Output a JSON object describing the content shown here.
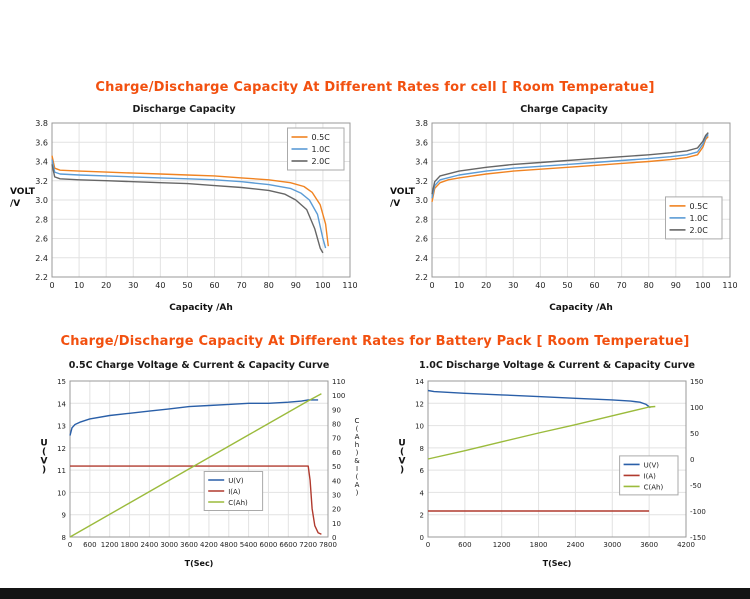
{
  "page": {
    "section1_title": "Charge/Discharge Capacity At Different Rates for cell [ Room Temperatue]",
    "section2_title": "Charge/Discharge Capacity At Different Rates for Battery Pack [ Room Temperatue]",
    "title_color": "#f2500f"
  },
  "chart_data": [
    {
      "type": "line",
      "title": "Discharge Capacity",
      "xlabel": "Capacity /Ah",
      "ylabel": "VOLT\n/V",
      "xlim": [
        0,
        110
      ],
      "ylim": [
        2.2,
        3.8
      ],
      "xticks": [
        "0",
        "10",
        "20",
        "30",
        "40",
        "50",
        "60",
        "70",
        "80",
        "90",
        "100",
        "110"
      ],
      "yticks": [
        "2.2",
        "2.4",
        "2.6",
        "2.8",
        "3.0",
        "3.2",
        "3.4",
        "3.6",
        "3.8"
      ],
      "grid": true,
      "legend_pos": "top-right",
      "series": [
        {
          "name": "0.5C",
          "color": "#f08321",
          "axis": "left",
          "points": [
            [
              0,
              3.46
            ],
            [
              1,
              3.33
            ],
            [
              3,
              3.31
            ],
            [
              10,
              3.3
            ],
            [
              20,
              3.29
            ],
            [
              30,
              3.28
            ],
            [
              40,
              3.27
            ],
            [
              50,
              3.26
            ],
            [
              60,
              3.25
            ],
            [
              70,
              3.23
            ],
            [
              80,
              3.21
            ],
            [
              88,
              3.18
            ],
            [
              93,
              3.14
            ],
            [
              96,
              3.08
            ],
            [
              99,
              2.95
            ],
            [
              101,
              2.75
            ],
            [
              102,
              2.52
            ]
          ]
        },
        {
          "name": "1.0C",
          "color": "#5b9bd5",
          "axis": "left",
          "points": [
            [
              0,
              3.42
            ],
            [
              1,
              3.29
            ],
            [
              3,
              3.27
            ],
            [
              10,
              3.26
            ],
            [
              20,
              3.25
            ],
            [
              30,
              3.24
            ],
            [
              40,
              3.23
            ],
            [
              50,
              3.22
            ],
            [
              60,
              3.21
            ],
            [
              70,
              3.19
            ],
            [
              80,
              3.16
            ],
            [
              88,
              3.12
            ],
            [
              92,
              3.07
            ],
            [
              95,
              3.0
            ],
            [
              98,
              2.85
            ],
            [
              100,
              2.6
            ],
            [
              101,
              2.5
            ]
          ]
        },
        {
          "name": "2.0C",
          "color": "#666666",
          "axis": "left",
          "points": [
            [
              0,
              3.37
            ],
            [
              1,
              3.24
            ],
            [
              3,
              3.22
            ],
            [
              10,
              3.21
            ],
            [
              20,
              3.2
            ],
            [
              30,
              3.19
            ],
            [
              40,
              3.18
            ],
            [
              50,
              3.17
            ],
            [
              60,
              3.15
            ],
            [
              70,
              3.13
            ],
            [
              80,
              3.1
            ],
            [
              86,
              3.06
            ],
            [
              90,
              3.0
            ],
            [
              94,
              2.9
            ],
            [
              97,
              2.7
            ],
            [
              99,
              2.5
            ],
            [
              100,
              2.45
            ]
          ]
        }
      ]
    },
    {
      "type": "line",
      "title": "Charge Capacity",
      "xlabel": "Capacity /Ah",
      "ylabel": "VOLT\n/V",
      "xlim": [
        0,
        110
      ],
      "ylim": [
        2.2,
        3.8
      ],
      "xticks": [
        "0",
        "10",
        "20",
        "30",
        "40",
        "50",
        "60",
        "70",
        "80",
        "90",
        "100",
        "110"
      ],
      "yticks": [
        "2.2",
        "2.4",
        "2.6",
        "2.8",
        "3.0",
        "3.2",
        "3.4",
        "3.6",
        "3.8"
      ],
      "grid": true,
      "legend_pos": "mid-right",
      "series": [
        {
          "name": "0.5C",
          "color": "#f08321",
          "axis": "left",
          "points": [
            [
              0,
              2.98
            ],
            [
              1,
              3.12
            ],
            [
              3,
              3.18
            ],
            [
              6,
              3.21
            ],
            [
              10,
              3.23
            ],
            [
              15,
              3.25
            ],
            [
              20,
              3.27
            ],
            [
              30,
              3.3
            ],
            [
              40,
              3.32
            ],
            [
              50,
              3.34
            ],
            [
              60,
              3.36
            ],
            [
              70,
              3.38
            ],
            [
              80,
              3.4
            ],
            [
              88,
              3.42
            ],
            [
              94,
              3.44
            ],
            [
              98,
              3.47
            ],
            [
              100,
              3.55
            ],
            [
              101,
              3.63
            ],
            [
              102,
              3.66
            ]
          ]
        },
        {
          "name": "1.0C",
          "color": "#5b9bd5",
          "axis": "left",
          "points": [
            [
              0,
              3.02
            ],
            [
              1,
              3.15
            ],
            [
              3,
              3.21
            ],
            [
              10,
              3.26
            ],
            [
              20,
              3.3
            ],
            [
              30,
              3.33
            ],
            [
              40,
              3.35
            ],
            [
              50,
              3.37
            ],
            [
              60,
              3.39
            ],
            [
              70,
              3.41
            ],
            [
              80,
              3.43
            ],
            [
              88,
              3.45
            ],
            [
              94,
              3.47
            ],
            [
              98,
              3.5
            ],
            [
              100,
              3.58
            ],
            [
              101,
              3.65
            ],
            [
              102,
              3.68
            ]
          ]
        },
        {
          "name": "2.0C",
          "color": "#666666",
          "axis": "left",
          "points": [
            [
              0,
              3.06
            ],
            [
              1,
              3.19
            ],
            [
              3,
              3.25
            ],
            [
              10,
              3.3
            ],
            [
              20,
              3.34
            ],
            [
              30,
              3.37
            ],
            [
              40,
              3.39
            ],
            [
              50,
              3.41
            ],
            [
              60,
              3.43
            ],
            [
              70,
              3.45
            ],
            [
              80,
              3.47
            ],
            [
              88,
              3.49
            ],
            [
              94,
              3.51
            ],
            [
              98,
              3.54
            ],
            [
              100,
              3.61
            ],
            [
              101,
              3.67
            ],
            [
              102,
              3.7
            ]
          ]
        }
      ]
    },
    {
      "type": "line",
      "title": "0.5C Charge Voltage & Current & Capacity Curve",
      "xlabel": "T(Sec)",
      "ylabel": "U(V)",
      "ylabel_vertical": true,
      "y2label": "C(Ah)&I(A)",
      "xlim": [
        0,
        7800
      ],
      "ylim": [
        8,
        15
      ],
      "y2lim": [
        0,
        110
      ],
      "xticks": [
        "0",
        "600",
        "1200",
        "1800",
        "2400",
        "3000",
        "3600",
        "4200",
        "4800",
        "5400",
        "6000",
        "6600",
        "7200",
        "7800"
      ],
      "yticks": [
        "8",
        "9",
        "10",
        "11",
        "12",
        "13",
        "14",
        "15"
      ],
      "y2ticks": [
        "0",
        "10",
        "20",
        "30",
        "40",
        "50",
        "60",
        "70",
        "80",
        "90",
        "100",
        "110"
      ],
      "grid": true,
      "legend_pos": "bottom-center",
      "series": [
        {
          "name": "U(V)",
          "color": "#2a5fa8",
          "axis": "left",
          "points": [
            [
              0,
              12.55
            ],
            [
              60,
              12.9
            ],
            [
              150,
              13.05
            ],
            [
              300,
              13.15
            ],
            [
              600,
              13.3
            ],
            [
              1200,
              13.45
            ],
            [
              1800,
              13.55
            ],
            [
              2400,
              13.65
            ],
            [
              3000,
              13.75
            ],
            [
              3600,
              13.85
            ],
            [
              4200,
              13.9
            ],
            [
              4800,
              13.95
            ],
            [
              5400,
              14.0
            ],
            [
              6000,
              14.0
            ],
            [
              6600,
              14.05
            ],
            [
              7000,
              14.1
            ],
            [
              7200,
              14.15
            ],
            [
              7500,
              14.15
            ]
          ]
        },
        {
          "name": "I(A)",
          "color": "#b03a2e",
          "axis": "right",
          "points": [
            [
              0,
              50
            ],
            [
              7200,
              50
            ],
            [
              7260,
              40
            ],
            [
              7320,
              20
            ],
            [
              7400,
              8
            ],
            [
              7500,
              3
            ],
            [
              7600,
              2
            ]
          ]
        },
        {
          "name": "C(Ah)",
          "color": "#9bbb3c",
          "axis": "right",
          "points": [
            [
              0,
              0
            ],
            [
              1800,
              24
            ],
            [
              3600,
              48
            ],
            [
              5400,
              72
            ],
            [
              7200,
              96
            ],
            [
              7600,
              101
            ]
          ]
        }
      ]
    },
    {
      "type": "line",
      "title": "1.0C Discharge Voltage & Current & Capacity Curve",
      "xlabel": "T(Sec)",
      "ylabel": "U(V)",
      "ylabel_vertical": true,
      "xlim": [
        0,
        4200
      ],
      "ylim": [
        0,
        14
      ],
      "y2lim": [
        -150,
        150
      ],
      "xticks": [
        "0",
        "600",
        "1200",
        "1800",
        "2400",
        "3000",
        "3600",
        "4200"
      ],
      "yticks": [
        "0",
        "2",
        "4",
        "6",
        "8",
        "10",
        "12",
        "14"
      ],
      "y2ticks": [
        "-150",
        "-100",
        "-50",
        "0",
        "50",
        "100",
        "150"
      ],
      "grid": true,
      "legend_pos": "mid-right",
      "series": [
        {
          "name": "U(V)",
          "color": "#2a5fa8",
          "axis": "left",
          "points": [
            [
              0,
              13.15
            ],
            [
              100,
              13.05
            ],
            [
              600,
              12.9
            ],
            [
              1200,
              12.75
            ],
            [
              1800,
              12.6
            ],
            [
              2400,
              12.45
            ],
            [
              3000,
              12.3
            ],
            [
              3300,
              12.2
            ],
            [
              3450,
              12.1
            ],
            [
              3550,
              11.9
            ],
            [
              3620,
              11.6
            ]
          ]
        },
        {
          "name": "I(A)",
          "color": "#b03a2e",
          "axis": "right",
          "points": [
            [
              0,
              -100
            ],
            [
              3600,
              -100
            ]
          ]
        },
        {
          "name": "C(Ah)",
          "color": "#9bbb3c",
          "axis": "right",
          "points": [
            [
              0,
              0
            ],
            [
              600,
              16
            ],
            [
              1200,
              33
            ],
            [
              1800,
              50
            ],
            [
              2400,
              66
            ],
            [
              3000,
              83
            ],
            [
              3600,
              100
            ],
            [
              3700,
              101
            ]
          ]
        }
      ]
    }
  ]
}
